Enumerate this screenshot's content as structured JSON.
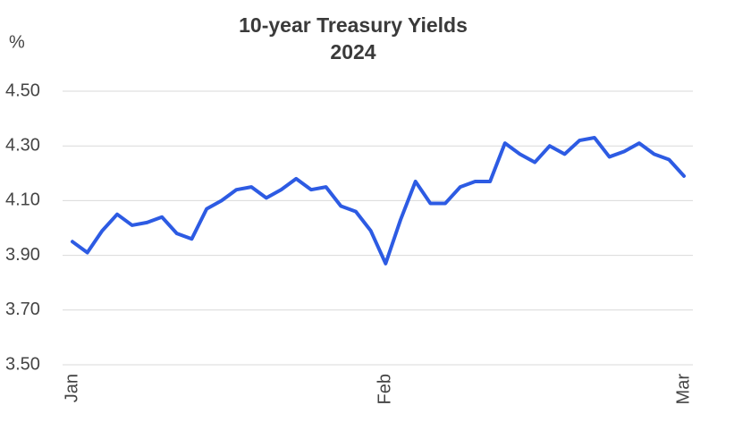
{
  "chart_data": {
    "type": "line",
    "title": "10-year Treasury Yields",
    "subtitle": "2024",
    "y_label": "%",
    "categories": [
      "Jan",
      null,
      null,
      null,
      null,
      null,
      null,
      null,
      null,
      null,
      null,
      null,
      null,
      null,
      null,
      null,
      null,
      null,
      null,
      null,
      null,
      "Feb",
      null,
      null,
      null,
      null,
      null,
      null,
      null,
      null,
      null,
      null,
      null,
      null,
      null,
      null,
      null,
      null,
      null,
      null,
      null,
      "Mar"
    ],
    "values": [
      3.95,
      3.91,
      3.99,
      4.05,
      4.01,
      4.02,
      4.04,
      3.98,
      3.96,
      4.07,
      4.1,
      4.14,
      4.15,
      4.11,
      4.14,
      4.18,
      4.14,
      4.15,
      4.08,
      4.06,
      3.99,
      3.87,
      4.03,
      4.17,
      4.09,
      4.09,
      4.15,
      4.17,
      4.17,
      4.31,
      4.27,
      4.24,
      4.3,
      4.27,
      4.32,
      4.33,
      4.26,
      4.28,
      4.31,
      4.27,
      4.25,
      4.19
    ],
    "color": "#2d5be3",
    "ylim": [
      3.5,
      4.5
    ],
    "yticks": [
      {
        "value": 3.5,
        "label": "3.50"
      },
      {
        "value": 3.7,
        "label": "3.70"
      },
      {
        "value": 3.9,
        "label": "3.90"
      },
      {
        "value": 4.1,
        "label": "4.10"
      },
      {
        "value": 4.3,
        "label": "4.30"
      },
      {
        "value": 4.5,
        "label": "4.50"
      }
    ],
    "grid": true
  }
}
